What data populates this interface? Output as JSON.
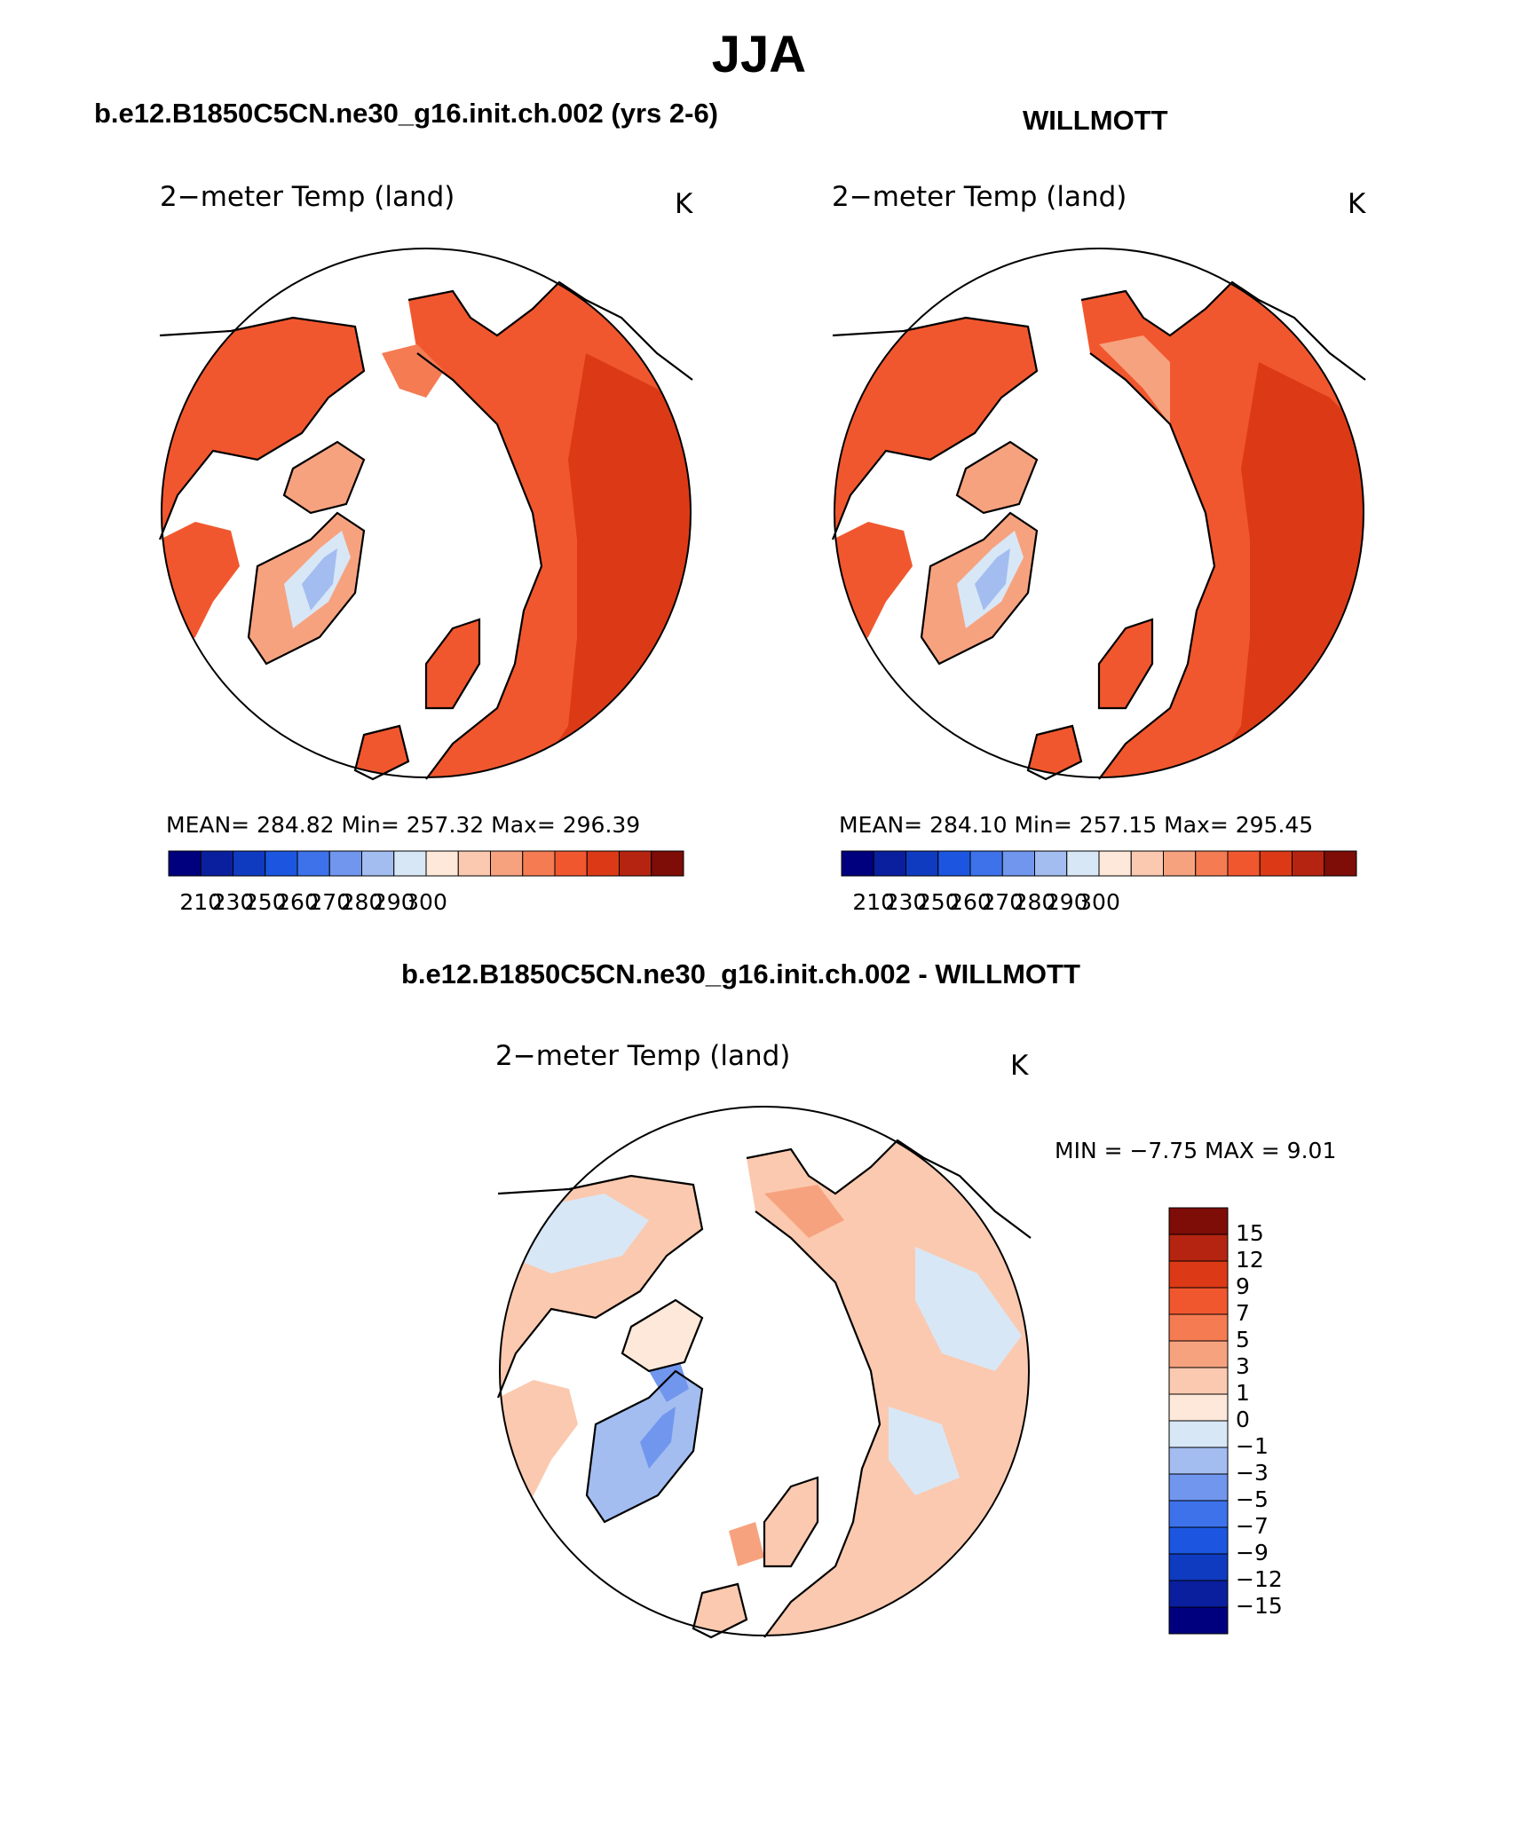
{
  "page": {
    "title": "JJA"
  },
  "panels": [
    {
      "id": "model",
      "title": "b.e12.B1850C5CN.ne30_g16.init.ch.002 (yrs 2-6)",
      "subtitle": "2−meter Temp (land)",
      "units": "K",
      "stats": "MEAN=  284.82    Min=  257.32    Max=  296.39",
      "mean": 284.82,
      "min": 257.32,
      "max": 296.39,
      "colorbar": {
        "colors": [
          "#00007f",
          "#0a1f9e",
          "#0f3bc0",
          "#1c56e0",
          "#3d72ea",
          "#7196ee",
          "#a3bdf0",
          "#d8e7f6",
          "#fde8d9",
          "#fbc9af",
          "#f7a27f",
          "#f47b52",
          "#f1572e",
          "#dc3a16",
          "#b52410",
          "#7e0c07"
        ],
        "labels": [
          "210",
          "230",
          "250",
          "260",
          "270",
          "280",
          "290",
          "300"
        ]
      }
    },
    {
      "id": "obs",
      "title": "WILLMOTT",
      "subtitle": "2−meter Temp (land)",
      "units": "K",
      "stats": "MEAN=  284.10    Min=  257.15    Max=  295.45",
      "mean": 284.1,
      "min": 257.15,
      "max": 295.45,
      "colorbar": {
        "colors": [
          "#00007f",
          "#0a1f9e",
          "#0f3bc0",
          "#1c56e0",
          "#3d72ea",
          "#7196ee",
          "#a3bdf0",
          "#d8e7f6",
          "#fde8d9",
          "#fbc9af",
          "#f7a27f",
          "#f47b52",
          "#f1572e",
          "#dc3a16",
          "#b52410",
          "#7e0c07"
        ],
        "labels": [
          "210",
          "230",
          "250",
          "260",
          "270",
          "280",
          "290",
          "300"
        ]
      }
    },
    {
      "id": "diff",
      "title": "b.e12.B1850C5CN.ne30_g16.init.ch.002 - WILLMOTT",
      "subtitle": "2−meter Temp (land)",
      "units": "K",
      "stats": "MIN =    −7.75  MAX =      9.01",
      "min": -7.75,
      "max": 9.01,
      "colorbar": {
        "colors": [
          "#7e0c07",
          "#b52410",
          "#dc3a16",
          "#f1572e",
          "#f47b52",
          "#f7a27f",
          "#fbc9af",
          "#fde8d9",
          "#d8e7f6",
          "#a3bdf0",
          "#7196ee",
          "#3d72ea",
          "#1c56e0",
          "#0f3bc0",
          "#0a1f9e",
          "#00007f"
        ],
        "labels": [
          "15",
          "12",
          "9",
          "7",
          "5",
          "3",
          "1",
          "0",
          "−1",
          "−3",
          "−5",
          "−7",
          "−9",
          "−12",
          "−15"
        ]
      }
    }
  ],
  "map_colors": {
    "model": {
      "land": "#f1572e",
      "warm": "#dc3a16",
      "cool": "#f47b52",
      "coast": "#f7a27f",
      "ice": "#d8e7f6",
      "ice_core": "#a3bdf0"
    },
    "obs": {
      "land": "#f1572e",
      "warm": "#dc3a16",
      "cool": "#f47b52",
      "coast": "#f7a27f",
      "ice": "#d8e7f6",
      "ice_core": "#a3bdf0"
    },
    "diff": {
      "land": "#fbc9af",
      "warm": "#f7a27f",
      "cool": "#d8e7f6",
      "coast": "#fde8d9",
      "ice": "#a3bdf0",
      "ice_core": "#7196ee"
    }
  }
}
